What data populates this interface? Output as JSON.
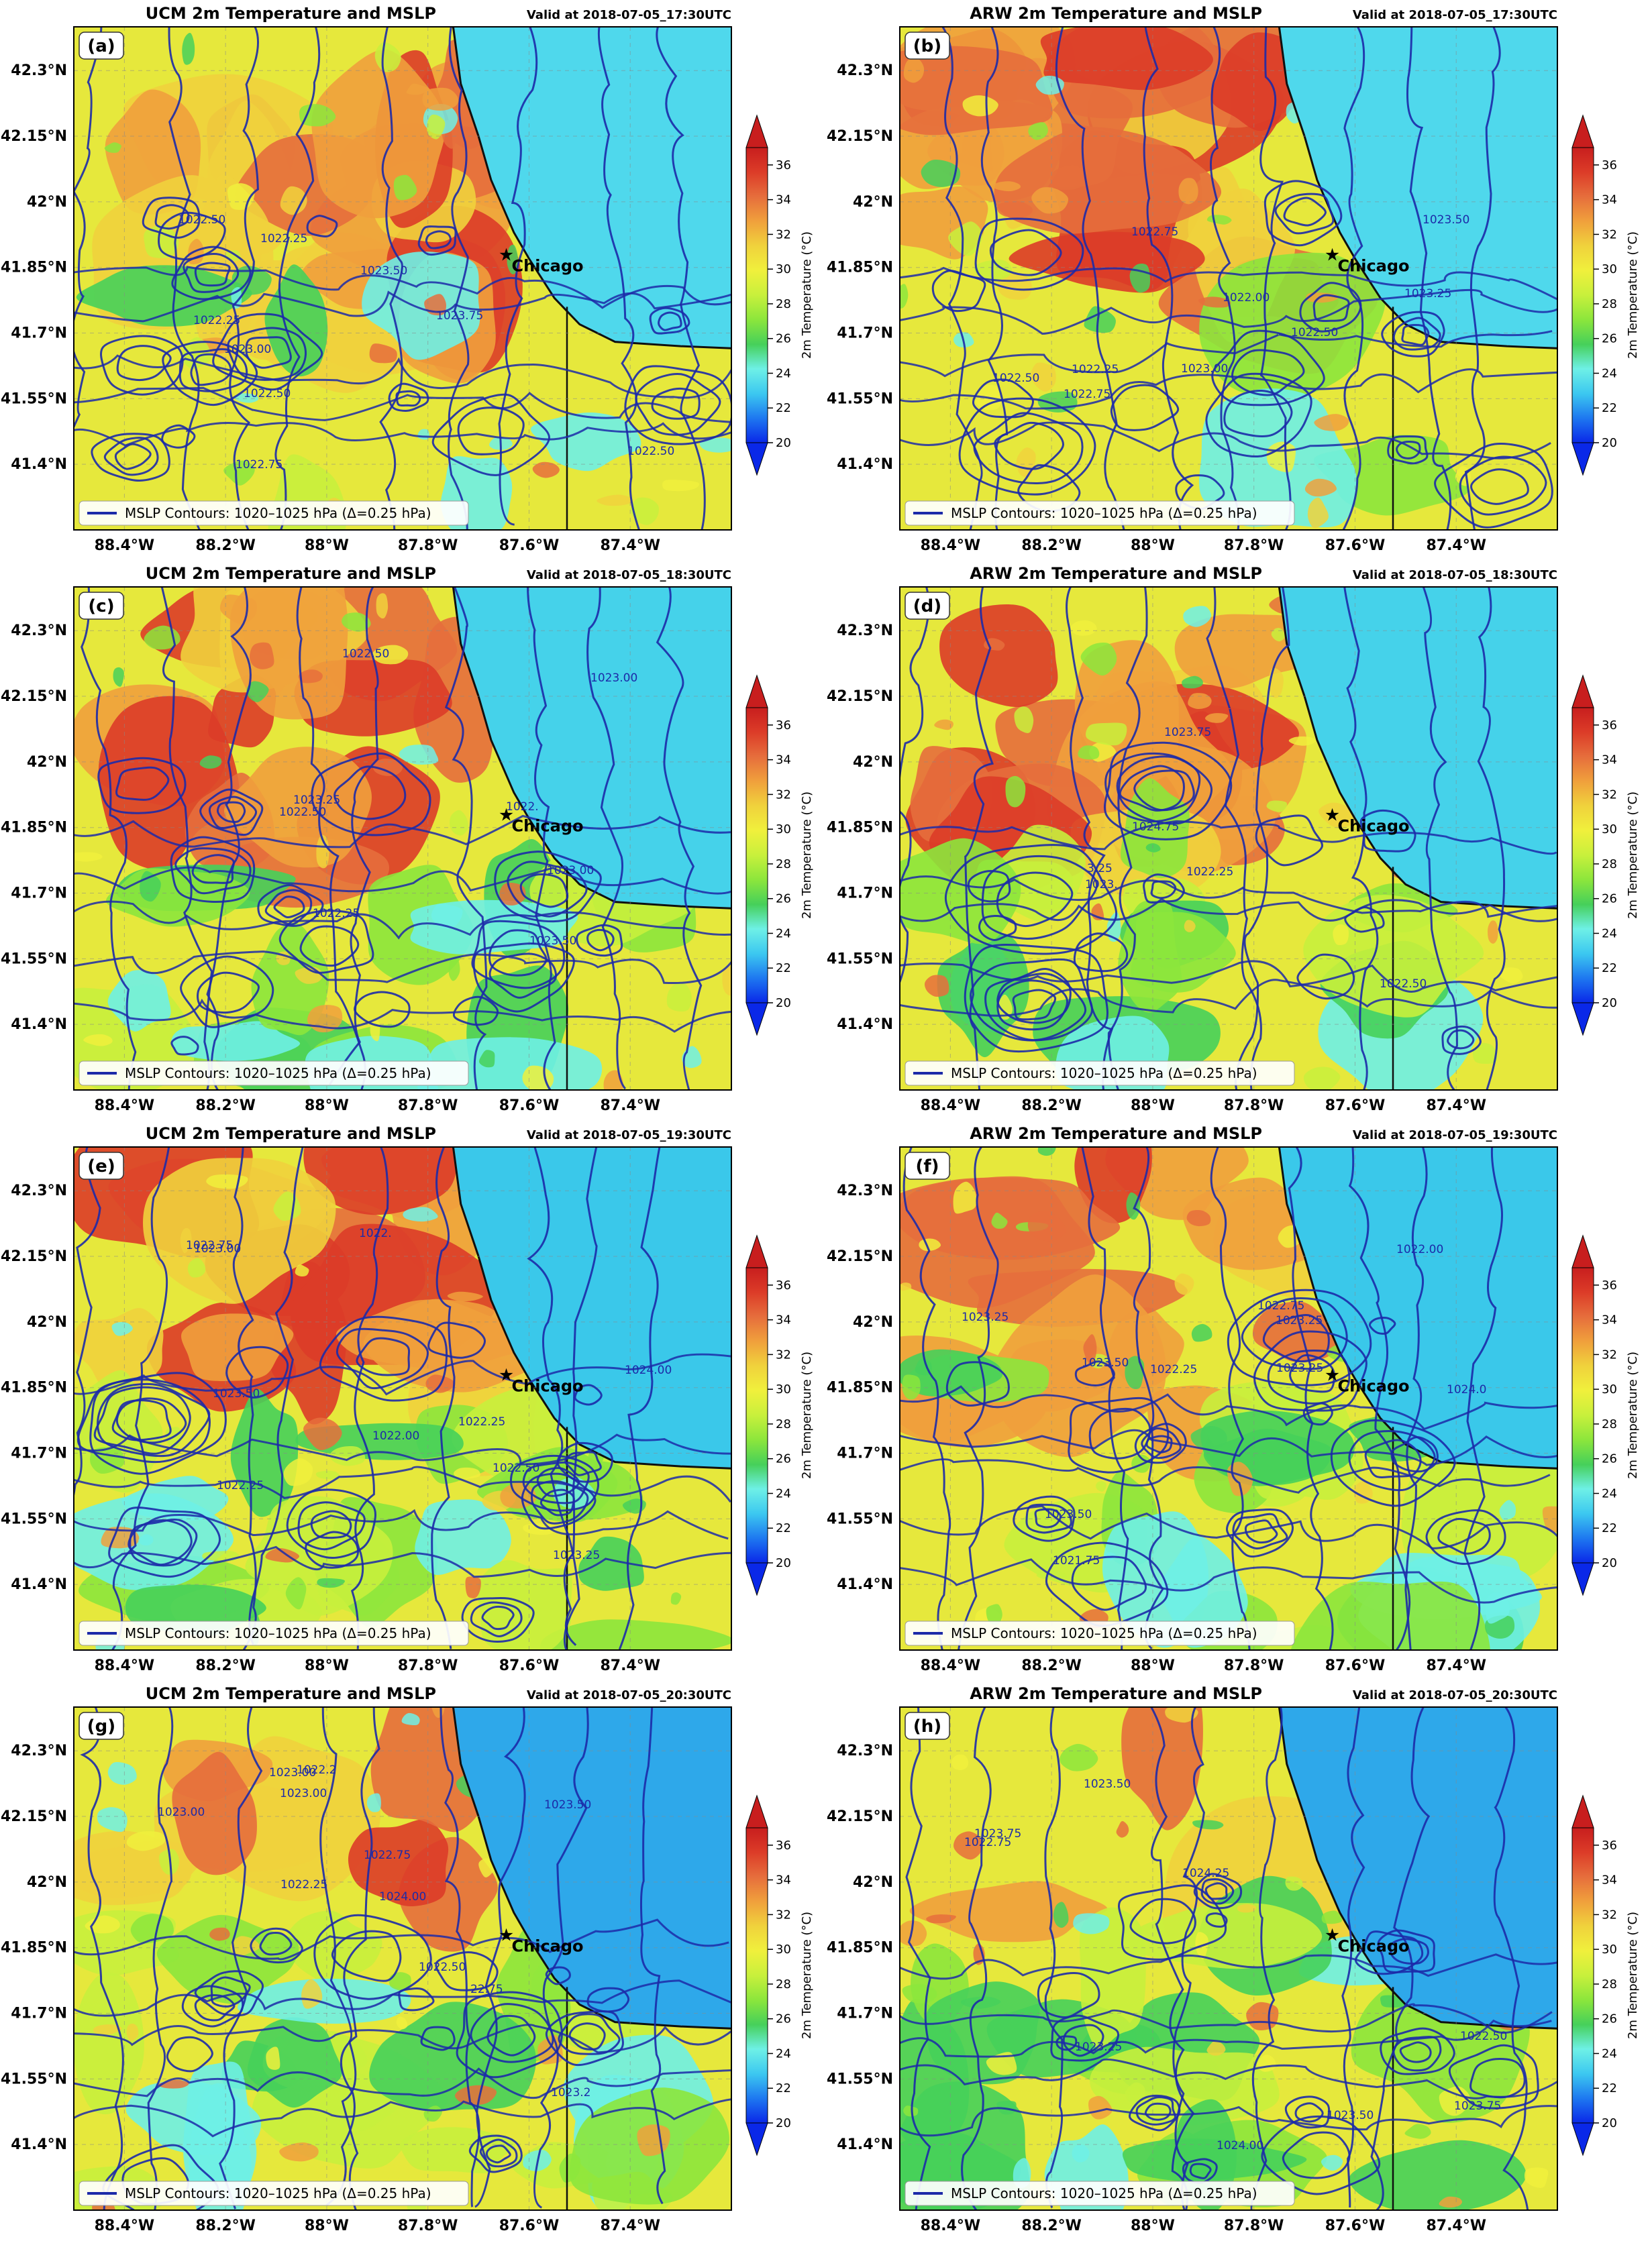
{
  "figure": {
    "lat_ticks": [
      "42.3°N",
      "42.15°N",
      "42°N",
      "41.85°N",
      "41.7°N",
      "41.55°N",
      "41.4°N"
    ],
    "lon_ticks": [
      "88.4°W",
      "88.2°W",
      "88°W",
      "87.8°W",
      "87.6°W",
      "87.4°W"
    ],
    "colorbar": {
      "label": "2m Temperature (°C)",
      "ticks": [
        "20",
        "22",
        "24",
        "26",
        "28",
        "30",
        "32",
        "34",
        "36"
      ],
      "range_c": [
        20,
        37
      ],
      "colors": [
        "#0a28e8",
        "#1e78f0",
        "#3cc8f0",
        "#6ef0e6",
        "#46d05a",
        "#8ce63c",
        "#c8f03c",
        "#f0f03c",
        "#f0d23c",
        "#f0a03c",
        "#e66e3c",
        "#dc3c28",
        "#c81e1e"
      ]
    },
    "city_label": "Chicago",
    "legend_text": "MSLP Contours: 1020–1025 hPa (Δ=0.25 hPa)",
    "contour_color": "#1c2aa8"
  },
  "panels": [
    {
      "id": "a",
      "label": "(a)",
      "title": "UCM 2m Temperature and MSLP",
      "valid": "Valid at 2018-07-05_17:30UTC",
      "contour_labels": [
        "1022.75",
        "1022.50",
        "1022.25",
        "1023.50",
        "1022.50",
        "1022.50",
        "1022.25",
        "1023.00",
        "1023.75"
      ]
    },
    {
      "id": "b",
      "label": "(b)",
      "title": "ARW 2m Temperature and MSLP",
      "valid": "Valid at 2018-07-05_17:30UTC",
      "contour_labels": [
        "1022.50",
        "1022.75",
        "1022.50",
        "1023.25",
        "1023.50",
        "1022.00",
        "1022.25",
        "1022.75",
        "1023.00"
      ]
    },
    {
      "id": "c",
      "label": "(c)",
      "title": "UCM 2m Temperature and MSLP",
      "valid": "Valid at 2018-07-05_18:30UTC",
      "contour_labels": [
        "1022.25",
        "1022.50",
        "1023.00",
        "1022.50",
        "1023.00",
        "1023.25",
        "1022.",
        "1023.50"
      ]
    },
    {
      "id": "d",
      "label": "(d)",
      "title": "ARW 2m Temperature and MSLP",
      "valid": "Valid at 2018-07-05_18:30UTC",
      "contour_labels": [
        "1022.25",
        "1022.50",
        "3.25",
        "1024.75",
        "1023.75",
        "1023."
      ]
    },
    {
      "id": "e",
      "label": "(e)",
      "title": "UCM 2m Temperature and MSLP",
      "valid": "Valid at 2018-07-05_19:30UTC",
      "contour_labels": [
        "1022.00",
        "1022.75",
        "1023.00",
        "1022.25",
        "1022.50",
        "1024.00",
        "1023.50",
        "1023.25",
        "1022.",
        "1022.25"
      ]
    },
    {
      "id": "f",
      "label": "(f)",
      "title": "ARW 2m Temperature and MSLP",
      "valid": "Valid at 2018-07-05_19:30UTC",
      "contour_labels": [
        "1021.75",
        "1022.00",
        "1022.25",
        "1022.75",
        "1023.25",
        "1023.50",
        "1023.50",
        "1023.25",
        "1023.25",
        "1024.0"
      ]
    },
    {
      "id": "g",
      "label": "(g)",
      "title": "UCM 2m Temperature and MSLP",
      "valid": "Valid at 2018-07-05_20:30UTC",
      "contour_labels": [
        "22.75",
        "1022.25",
        "1023.00",
        "1023.00",
        "1024.00",
        "1023.50",
        "1022.75",
        "1022.50",
        "1022.2",
        "1023.00",
        "1023.2"
      ]
    },
    {
      "id": "h",
      "label": "(h)",
      "title": "ARW 2m Temperature and MSLP",
      "valid": "Valid at 2018-07-05_20:30UTC",
      "contour_labels": [
        "1022.75",
        "1023.50",
        "1024.00",
        "1024.25",
        "1023.50",
        "1023.75",
        "1023.75",
        "1023.25",
        "1022.50"
      ]
    }
  ]
}
